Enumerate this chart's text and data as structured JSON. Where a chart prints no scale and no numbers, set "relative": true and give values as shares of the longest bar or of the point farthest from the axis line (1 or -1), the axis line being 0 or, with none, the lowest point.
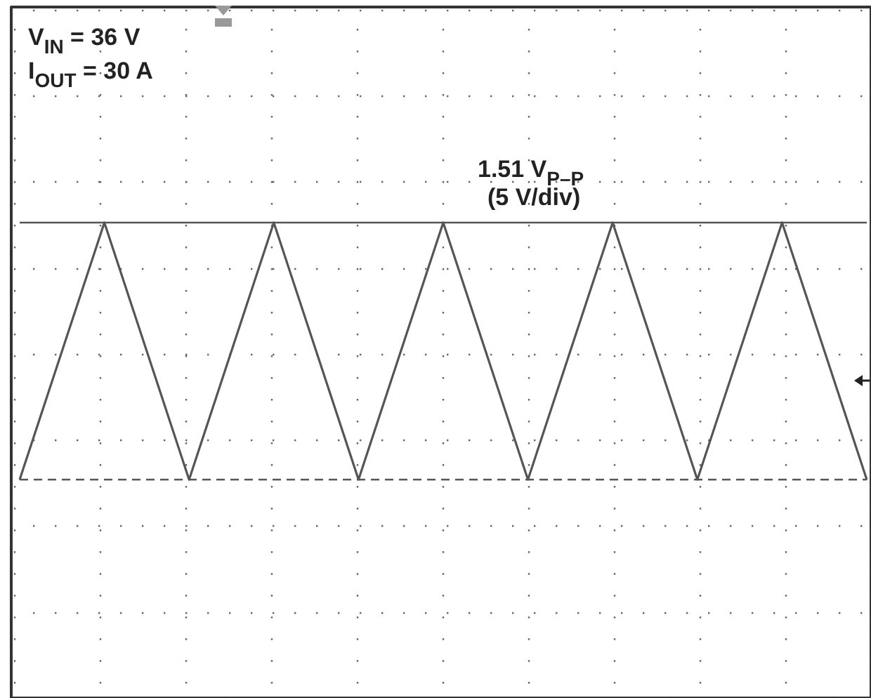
{
  "chart_data": {
    "type": "line",
    "relative": true,
    "categories": [
      null,
      null,
      null,
      null,
      null,
      null,
      null,
      null,
      null,
      null,
      null
    ],
    "series": [
      {
        "color": "#555555",
        "values": [
          0,
          1,
          0,
          1,
          0,
          1,
          0,
          1,
          0,
          1,
          0
        ]
      }
    ],
    "grid": true,
    "marker": "none",
    "line_style": "solid",
    "ref_lines": [
      {
        "axis": "y",
        "value": 1,
        "label": null,
        "color": "#555555",
        "line_style": "solid"
      },
      {
        "axis": "y",
        "value": 0,
        "label": null,
        "color": "#555555",
        "line_style": "dashed"
      }
    ],
    "annotations": [
      "V$_{IN}$ = 36 V",
      "I$_{OUT}$ = 30 A",
      "1.51 V$_{P–P}$",
      "(5 V/div)"
    ]
  }
}
